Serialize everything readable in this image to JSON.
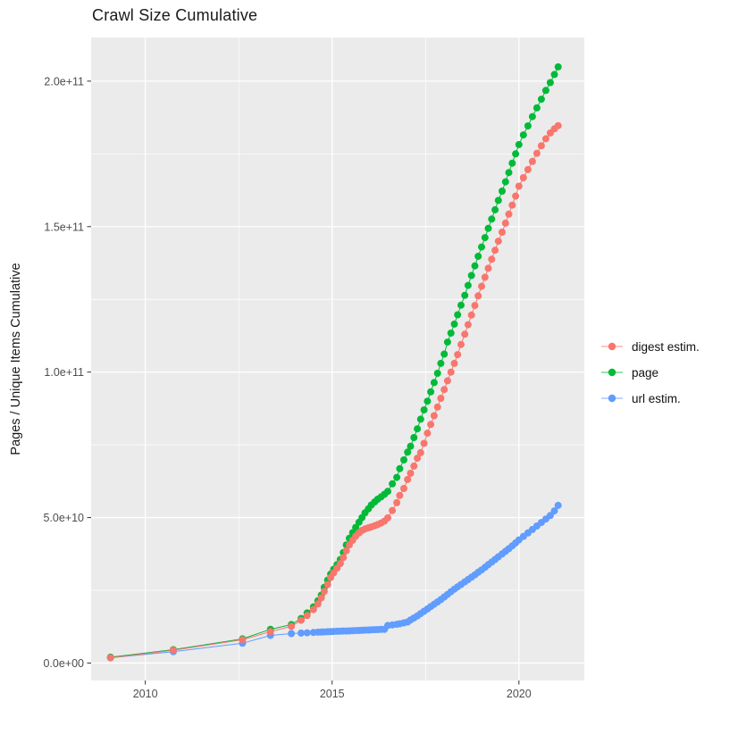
{
  "header": {
    "title": "Crawl Size Cumulative"
  },
  "chart_data": {
    "type": "line",
    "title": "Crawl Size Cumulative",
    "xlabel": "",
    "ylabel": "Pages / Unique Items Cumulative",
    "legend_position": "right",
    "grid": "on",
    "panel_bg": "#EBEBEB",
    "grid_color": "#FFFFFF",
    "tick_label_color": "#4D4D4D",
    "tick_mark_color": "#333333",
    "value_scale": 1000000000.0,
    "xlim": [
      2008.55,
      2021.75
    ],
    "ylim": [
      -6,
      215
    ],
    "x_ticks": {
      "values": [
        2010,
        2015,
        2020
      ],
      "labels": [
        "2010",
        "2015",
        "2020"
      ]
    },
    "x_minor": [
      2012.5,
      2017.5
    ],
    "y_ticks": {
      "values": [
        0,
        50,
        100,
        150,
        200
      ],
      "labels": [
        "0.0e+00",
        "5.0e+10",
        "1.0e+11",
        "1.5e+11",
        "2.0e+11"
      ]
    },
    "y_minor": [
      25,
      75,
      125,
      175
    ],
    "x": [
      2009.07,
      2010.75,
      2012.6,
      2013.35,
      2013.91,
      2014.17,
      2014.33,
      2014.5,
      2014.62,
      2014.71,
      2014.79,
      2014.88,
      2014.96,
      2015.04,
      2015.13,
      2015.22,
      2015.3,
      2015.38,
      2015.46,
      2015.55,
      2015.63,
      2015.72,
      2015.8,
      2015.88,
      2015.97,
      2016.05,
      2016.14,
      2016.22,
      2016.31,
      2016.4,
      2016.49,
      2016.61,
      2016.73,
      2016.81,
      2016.92,
      2017.02,
      2017.1,
      2017.19,
      2017.28,
      2017.37,
      2017.46,
      2017.55,
      2017.64,
      2017.73,
      2017.82,
      2017.91,
      2018.0,
      2018.09,
      2018.18,
      2018.27,
      2018.36,
      2018.45,
      2018.55,
      2018.64,
      2018.73,
      2018.82,
      2018.91,
      2019.0,
      2019.09,
      2019.18,
      2019.27,
      2019.36,
      2019.45,
      2019.55,
      2019.64,
      2019.73,
      2019.82,
      2019.91,
      2020.0,
      2020.12,
      2020.24,
      2020.36,
      2020.48,
      2020.6,
      2020.72,
      2020.84,
      2020.95,
      2021.05
    ],
    "series": [
      {
        "name": "digest estim.",
        "color": "#F8766D",
        "values": [
          1.8,
          4.4,
          8.0,
          10.8,
          12.6,
          14.7,
          16.3,
          18.4,
          20.3,
          22.4,
          24.6,
          27.0,
          29.4,
          31.0,
          32.6,
          34.2,
          36.3,
          38.6,
          40.6,
          42.2,
          43.6,
          44.7,
          45.6,
          46.1,
          46.5,
          46.8,
          47.2,
          47.6,
          48.1,
          48.8,
          49.9,
          52.4,
          55.1,
          57.6,
          60.0,
          63.1,
          65.2,
          67.7,
          70.4,
          72.3,
          75.5,
          79.0,
          82.0,
          85.0,
          88.0,
          91.0,
          94.0,
          97.0,
          100.0,
          103.0,
          106.0,
          109.5,
          113.0,
          116.3,
          119.6,
          122.9,
          126.2,
          129.5,
          132.6,
          135.7,
          138.8,
          141.9,
          145.0,
          148.1,
          151.2,
          154.3,
          157.4,
          160.5,
          163.9,
          166.8,
          169.6,
          172.4,
          175.2,
          177.8,
          180.2,
          182.2,
          183.6,
          184.7
        ]
      },
      {
        "name": "page",
        "color": "#00BA38",
        "values": [
          2.0,
          4.6,
          8.3,
          11.6,
          13.2,
          15.3,
          17.2,
          19.3,
          21.4,
          23.3,
          26.0,
          28.5,
          30.6,
          32.2,
          33.8,
          35.6,
          38.0,
          40.6,
          42.9,
          44.8,
          46.6,
          48.4,
          50.0,
          51.6,
          53.0,
          54.3,
          55.4,
          56.3,
          57.1,
          58.0,
          59.0,
          61.6,
          63.8,
          66.8,
          69.8,
          72.5,
          74.5,
          77.5,
          80.5,
          83.8,
          87.0,
          90.0,
          93.2,
          96.4,
          99.6,
          103.0,
          106.2,
          110.3,
          113.4,
          116.5,
          119.7,
          123.0,
          126.4,
          129.8,
          133.2,
          136.5,
          139.8,
          143.0,
          146.2,
          149.4,
          152.6,
          155.8,
          159.0,
          162.2,
          165.4,
          168.6,
          171.8,
          175.0,
          178.2,
          181.5,
          184.6,
          187.8,
          190.8,
          193.8,
          196.8,
          199.5,
          202.3,
          204.9
        ]
      },
      {
        "name": "url estim.",
        "color": "#619CFF",
        "values": [
          1.8,
          3.9,
          6.8,
          9.5,
          10.1,
          10.3,
          10.4,
          10.5,
          10.6,
          10.65,
          10.7,
          10.75,
          10.8,
          10.85,
          10.9,
          10.95,
          11.0,
          11.0,
          11.05,
          11.1,
          11.15,
          11.2,
          11.25,
          11.3,
          11.35,
          11.4,
          11.45,
          11.5,
          11.55,
          11.6,
          12.9,
          13.1,
          13.3,
          13.5,
          13.8,
          14.1,
          14.8,
          15.5,
          16.2,
          17.0,
          17.8,
          18.6,
          19.4,
          20.2,
          21.0,
          21.8,
          22.7,
          23.6,
          24.5,
          25.4,
          26.2,
          27.0,
          27.9,
          28.7,
          29.5,
          30.3,
          31.2,
          32.0,
          32.9,
          33.8,
          34.7,
          35.6,
          36.5,
          37.5,
          38.4,
          39.3,
          40.3,
          41.3,
          42.3,
          43.5,
          44.7,
          45.9,
          47.1,
          48.3,
          49.5,
          50.7,
          52.3,
          54.2
        ]
      }
    ]
  }
}
